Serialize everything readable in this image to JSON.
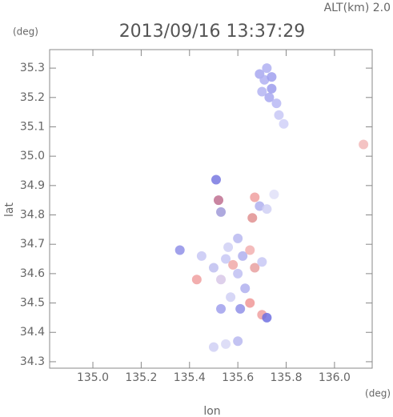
{
  "chart_data": {
    "type": "scatter",
    "title": "2013/09/16 13:37:29",
    "altitude_label": "ALT(km) 2.0",
    "y_unit": "(deg)",
    "x_unit": "(deg)",
    "xlabel": "lon",
    "ylabel": "lat",
    "xlim": [
      134.821,
      136.156
    ],
    "ylim": [
      34.278,
      35.363
    ],
    "xticks": [
      {
        "value": 135.0,
        "label": "135.0"
      },
      135.2,
      135.4,
      135.6,
      135.8,
      {
        "value": 136.0,
        "label": "136.0"
      }
    ],
    "yticks": [
      34.3,
      34.4,
      34.5,
      34.6,
      34.7,
      34.8,
      34.9,
      {
        "value": 35.0,
        "label": "35.0"
      },
      35.1,
      35.2,
      35.3
    ],
    "x": [
      135.69,
      135.71,
      135.74,
      135.7,
      135.73,
      135.76,
      135.74,
      135.77,
      135.79,
      135.72,
      136.12,
      135.51,
      135.52,
      135.53,
      135.67,
      135.69,
      135.66,
      135.72,
      135.75,
      135.55,
      135.58,
      135.62,
      135.65,
      135.6,
      135.53,
      135.67,
      135.7,
      135.63,
      135.57,
      135.65,
      135.61,
      135.53,
      135.7,
      135.72,
      135.56,
      135.5,
      135.45,
      135.36,
      135.43,
      135.6,
      135.5,
      135.55,
      135.6
    ],
    "y": [
      35.28,
      35.26,
      35.27,
      35.22,
      35.2,
      35.18,
      35.23,
      35.14,
      35.11,
      35.3,
      35.04,
      34.92,
      34.85,
      34.81,
      34.86,
      34.83,
      34.79,
      34.82,
      34.87,
      34.65,
      34.63,
      34.66,
      34.68,
      34.6,
      34.58,
      34.62,
      34.64,
      34.55,
      34.52,
      34.5,
      34.48,
      34.48,
      34.46,
      34.45,
      34.69,
      34.62,
      34.66,
      34.68,
      34.58,
      34.72,
      34.35,
      34.36,
      34.37
    ],
    "colors": [
      "#a8a8f0",
      "#b0b0f2",
      "#a0a0ee",
      "#b4b4f2",
      "#a8a8f0",
      "#b8b8f4",
      "#9c9cec",
      "#c8c8f6",
      "#d0d0f8",
      "#b0b0f2",
      "#f2b8b8",
      "#7878e0",
      "#c07090",
      "#a09ad8",
      "#f0a0a0",
      "#b0b0ee",
      "#e09090",
      "#d0d0f4",
      "#e0e0f8",
      "#c8c8f4",
      "#f0a8a8",
      "#b0b0ee",
      "#f2b0b0",
      "#c0c0f2",
      "#d8c8e8",
      "#e8a0a0",
      "#c8c8f4",
      "#b0b0ee",
      "#d0d0f4",
      "#f09898",
      "#9090e8",
      "#a0a0ec",
      "#f0a0a0",
      "#7070e0",
      "#d0d0f4",
      "#c0c0f0",
      "#c8c8f4",
      "#9090e8",
      "#f0a0a0",
      "#b8b8f0",
      "#d0d0f4",
      "#d8d8f6",
      "#b8b8f0"
    ]
  }
}
